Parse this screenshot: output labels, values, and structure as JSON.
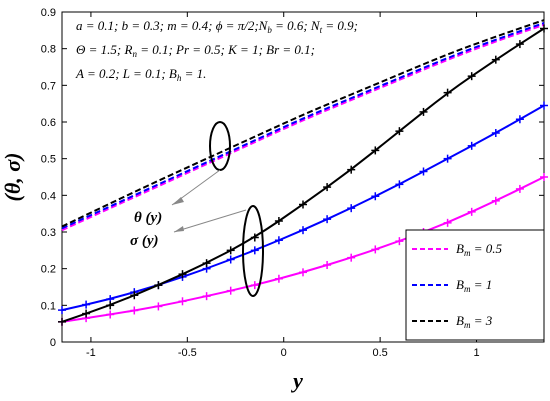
{
  "chart_data": {
    "type": "line",
    "xlabel": "y",
    "ylabel": "(θ, σ)",
    "xlim": [
      -1.15,
      1.35
    ],
    "ylim": [
      0,
      0.9
    ],
    "xticks": [
      -1,
      -0.5,
      0,
      0.5,
      1
    ],
    "xtick_labels": [
      "-1",
      "-0.5",
      "0",
      "0.5",
      "1"
    ],
    "yticks": [
      0,
      0.1,
      0.2,
      0.3,
      0.4,
      0.5,
      0.6,
      0.7,
      0.8,
      0.9
    ],
    "ytick_labels": [
      "0",
      "0.1",
      "0.2",
      "0.3",
      "0.4",
      "0.5",
      "0.6",
      "0.7",
      "0.8",
      "0.9"
    ],
    "grid": false,
    "legend_position": "bottom-right",
    "parameter_lines": [
      "a = 0.1; b = 0.3; m = 0.4; ϕ = π/2;N_b = 0.6; N_t = 0.9;",
      "Θ = 1.5; R_n = 0.1; Pr = 0.5; K = 1; Br = 0.1;",
      "A = 0.2; L = 0.1; B_h = 1."
    ],
    "annotations": [
      "θ (y)",
      "σ (y)"
    ],
    "series": [
      {
        "name": "B_m = 0.5",
        "group": "theta",
        "style": "dashed",
        "color": "#ff00ff",
        "x": [
          -1.15,
          -0.9,
          -0.65,
          -0.4,
          -0.15,
          0.1,
          0.35,
          0.6,
          0.85,
          1.1,
          1.35
        ],
        "y": [
          0.305,
          0.365,
          0.425,
          0.485,
          0.545,
          0.605,
          0.66,
          0.715,
          0.77,
          0.82,
          0.865
        ]
      },
      {
        "name": "B_m = 1",
        "group": "theta",
        "style": "dashed",
        "color": "#0000ff",
        "x": [
          -1.15,
          -0.9,
          -0.65,
          -0.4,
          -0.15,
          0.1,
          0.35,
          0.6,
          0.85,
          1.1,
          1.35
        ],
        "y": [
          0.31,
          0.37,
          0.43,
          0.49,
          0.55,
          0.61,
          0.665,
          0.72,
          0.775,
          0.825,
          0.87
        ]
      },
      {
        "name": "B_m = 3",
        "group": "theta",
        "style": "dashed",
        "color": "#000000",
        "x": [
          -1.15,
          -0.9,
          -0.65,
          -0.4,
          -0.15,
          0.1,
          0.35,
          0.6,
          0.85,
          1.1,
          1.35
        ],
        "y": [
          0.315,
          0.378,
          0.44,
          0.5,
          0.56,
          0.62,
          0.675,
          0.73,
          0.785,
          0.833,
          0.878
        ]
      },
      {
        "name": "",
        "group": "sigma",
        "style": "solid-plus",
        "color": "#ff00ff",
        "x": [
          -1.15,
          -0.9,
          -0.65,
          -0.4,
          -0.15,
          0.1,
          0.35,
          0.6,
          0.85,
          1.1,
          1.35
        ],
        "y": [
          0.055,
          0.075,
          0.097,
          0.125,
          0.155,
          0.19,
          0.23,
          0.275,
          0.325,
          0.385,
          0.45
        ]
      },
      {
        "name": "",
        "group": "sigma",
        "style": "solid-plus",
        "color": "#0000ff",
        "x": [
          -1.15,
          -0.9,
          -0.65,
          -0.4,
          -0.15,
          0.1,
          0.35,
          0.6,
          0.85,
          1.1,
          1.35
        ],
        "y": [
          0.087,
          0.117,
          0.155,
          0.2,
          0.25,
          0.305,
          0.365,
          0.43,
          0.5,
          0.57,
          0.645
        ]
      },
      {
        "name": "",
        "group": "sigma",
        "style": "solid-plus",
        "color": "#000000",
        "x": [
          -1.15,
          -0.9,
          -0.65,
          -0.4,
          -0.15,
          0.1,
          0.35,
          0.6,
          0.85,
          1.1,
          1.35
        ],
        "y": [
          0.055,
          0.1,
          0.155,
          0.215,
          0.285,
          0.375,
          0.47,
          0.575,
          0.68,
          0.77,
          0.855
        ]
      }
    ]
  }
}
